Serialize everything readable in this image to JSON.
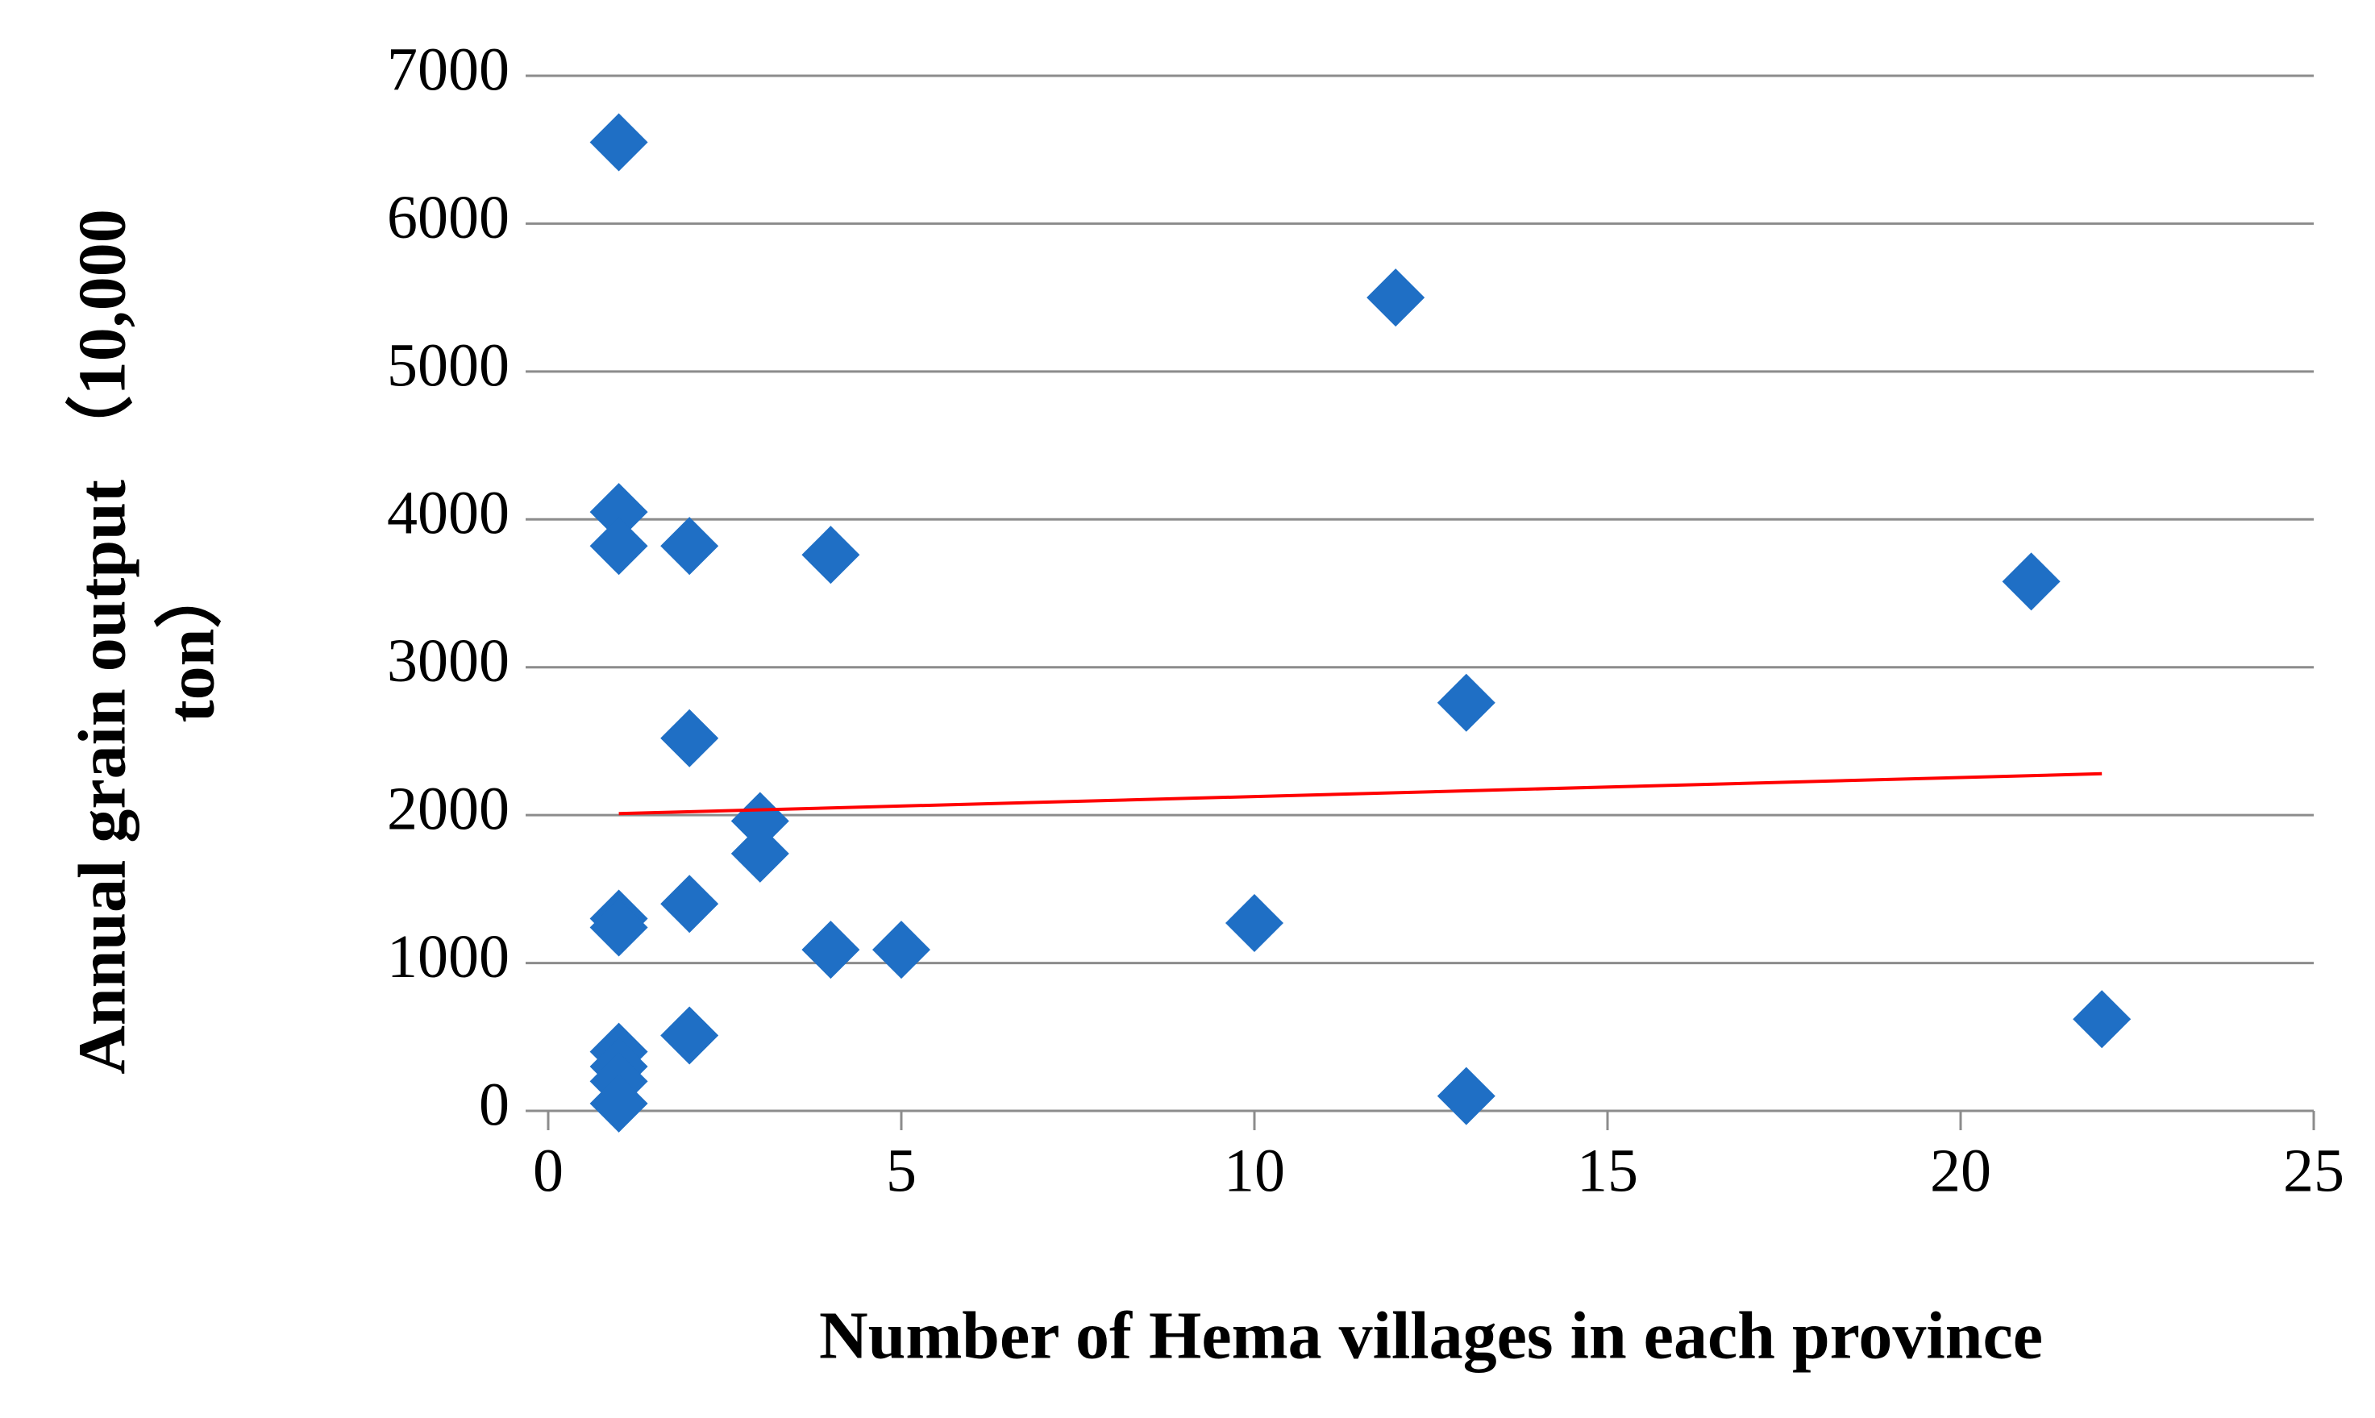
{
  "chart_data": {
    "type": "scatter",
    "xlabel": "Number of Hema villages in each province",
    "ylabel": [
      "Annual grain output （10,000",
      "ton）"
    ],
    "xlim": [
      0,
      25
    ],
    "xticks": [
      0,
      5,
      10,
      15,
      20,
      25
    ],
    "ylim": [
      0,
      7000
    ],
    "yticks": [
      0,
      1000,
      2000,
      3000,
      4000,
      5000,
      6000,
      7000
    ],
    "grid": true,
    "series": [
      {
        "color": "#1f6fc5",
        "x": [
          1,
          12,
          1,
          1,
          2,
          4,
          21,
          13,
          2,
          3,
          3,
          1,
          1,
          2,
          4,
          5,
          10,
          22,
          2,
          1,
          1,
          1,
          1,
          13
        ],
        "values": [
          6550,
          5500,
          4050,
          3820,
          3820,
          3760,
          3580,
          2760,
          2520,
          1960,
          1740,
          1300,
          1240,
          1400,
          1090,
          1090,
          1270,
          620,
          510,
          400,
          300,
          200,
          50,
          100
        ]
      }
    ],
    "trendline": {
      "color": "#ff0000",
      "x": [
        1,
        22
      ],
      "values": [
        2010,
        2280
      ]
    }
  }
}
